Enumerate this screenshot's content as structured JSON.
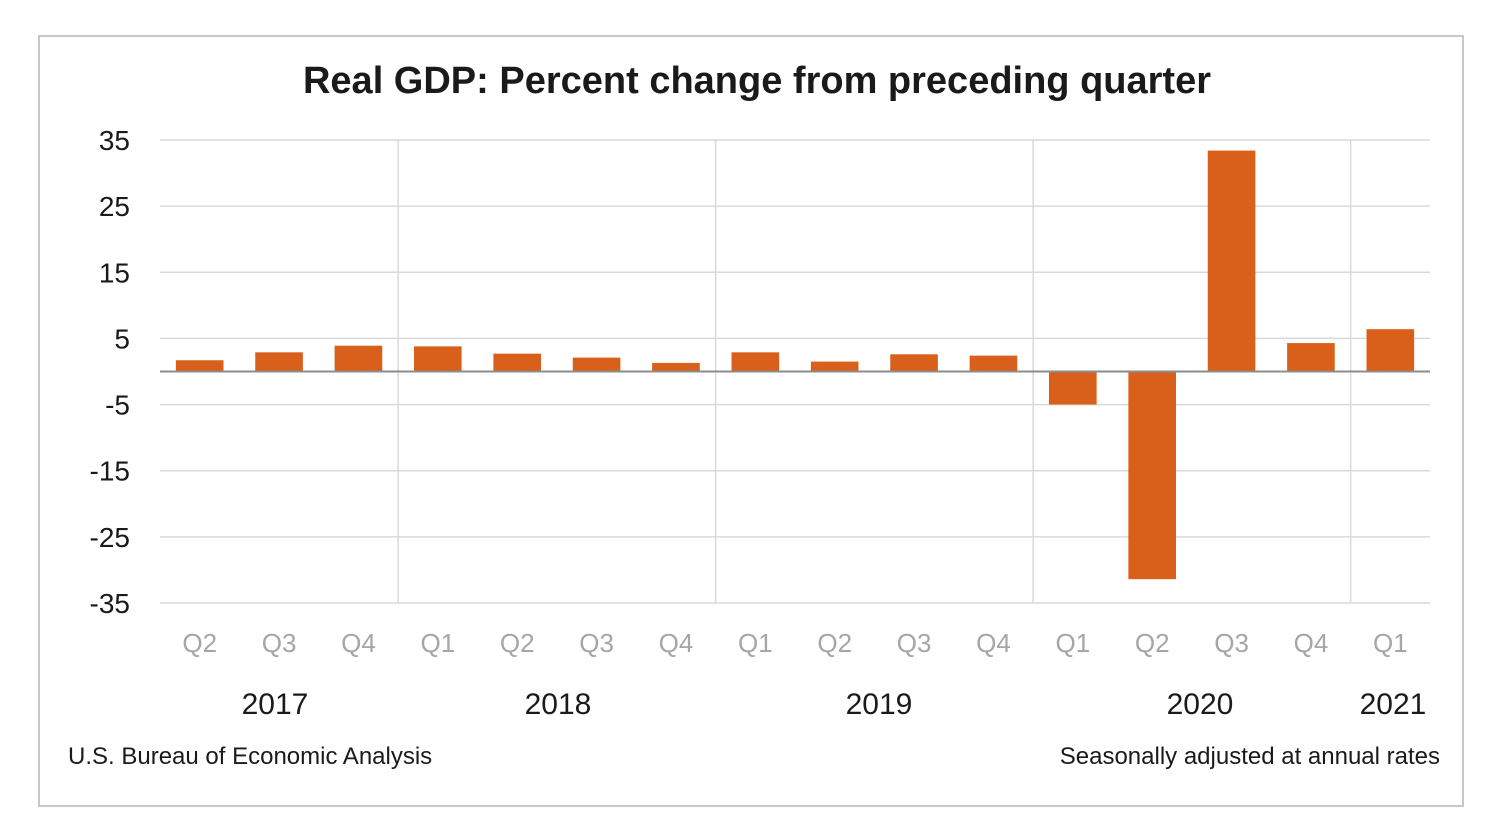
{
  "chart_data": {
    "type": "bar",
    "title": "Real GDP:  Percent change from preceding quarter",
    "categories": [
      "Q2",
      "Q3",
      "Q4",
      "Q1",
      "Q2",
      "Q3",
      "Q4",
      "Q1",
      "Q2",
      "Q3",
      "Q4",
      "Q1",
      "Q2",
      "Q3",
      "Q4",
      "Q1"
    ],
    "year_groups": [
      {
        "label": "2017",
        "count": 3
      },
      {
        "label": "2018",
        "count": 4
      },
      {
        "label": "2019",
        "count": 4
      },
      {
        "label": "2020",
        "count": 4
      },
      {
        "label": "2021",
        "count": 1
      }
    ],
    "values": [
      1.7,
      2.9,
      3.9,
      3.8,
      2.7,
      2.1,
      1.3,
      2.9,
      1.5,
      2.6,
      2.4,
      -5.0,
      -31.4,
      33.4,
      4.3,
      6.4
    ],
    "ylim": [
      -35,
      35
    ],
    "yticks": [
      35,
      25,
      15,
      5,
      -5,
      -15,
      -25,
      -35
    ],
    "xlabel": "",
    "ylabel": "",
    "grid": true,
    "bar_color": "#d9601a",
    "source": "U.S. Bureau of Economic Analysis",
    "note": "Seasonally adjusted at annual rates"
  }
}
